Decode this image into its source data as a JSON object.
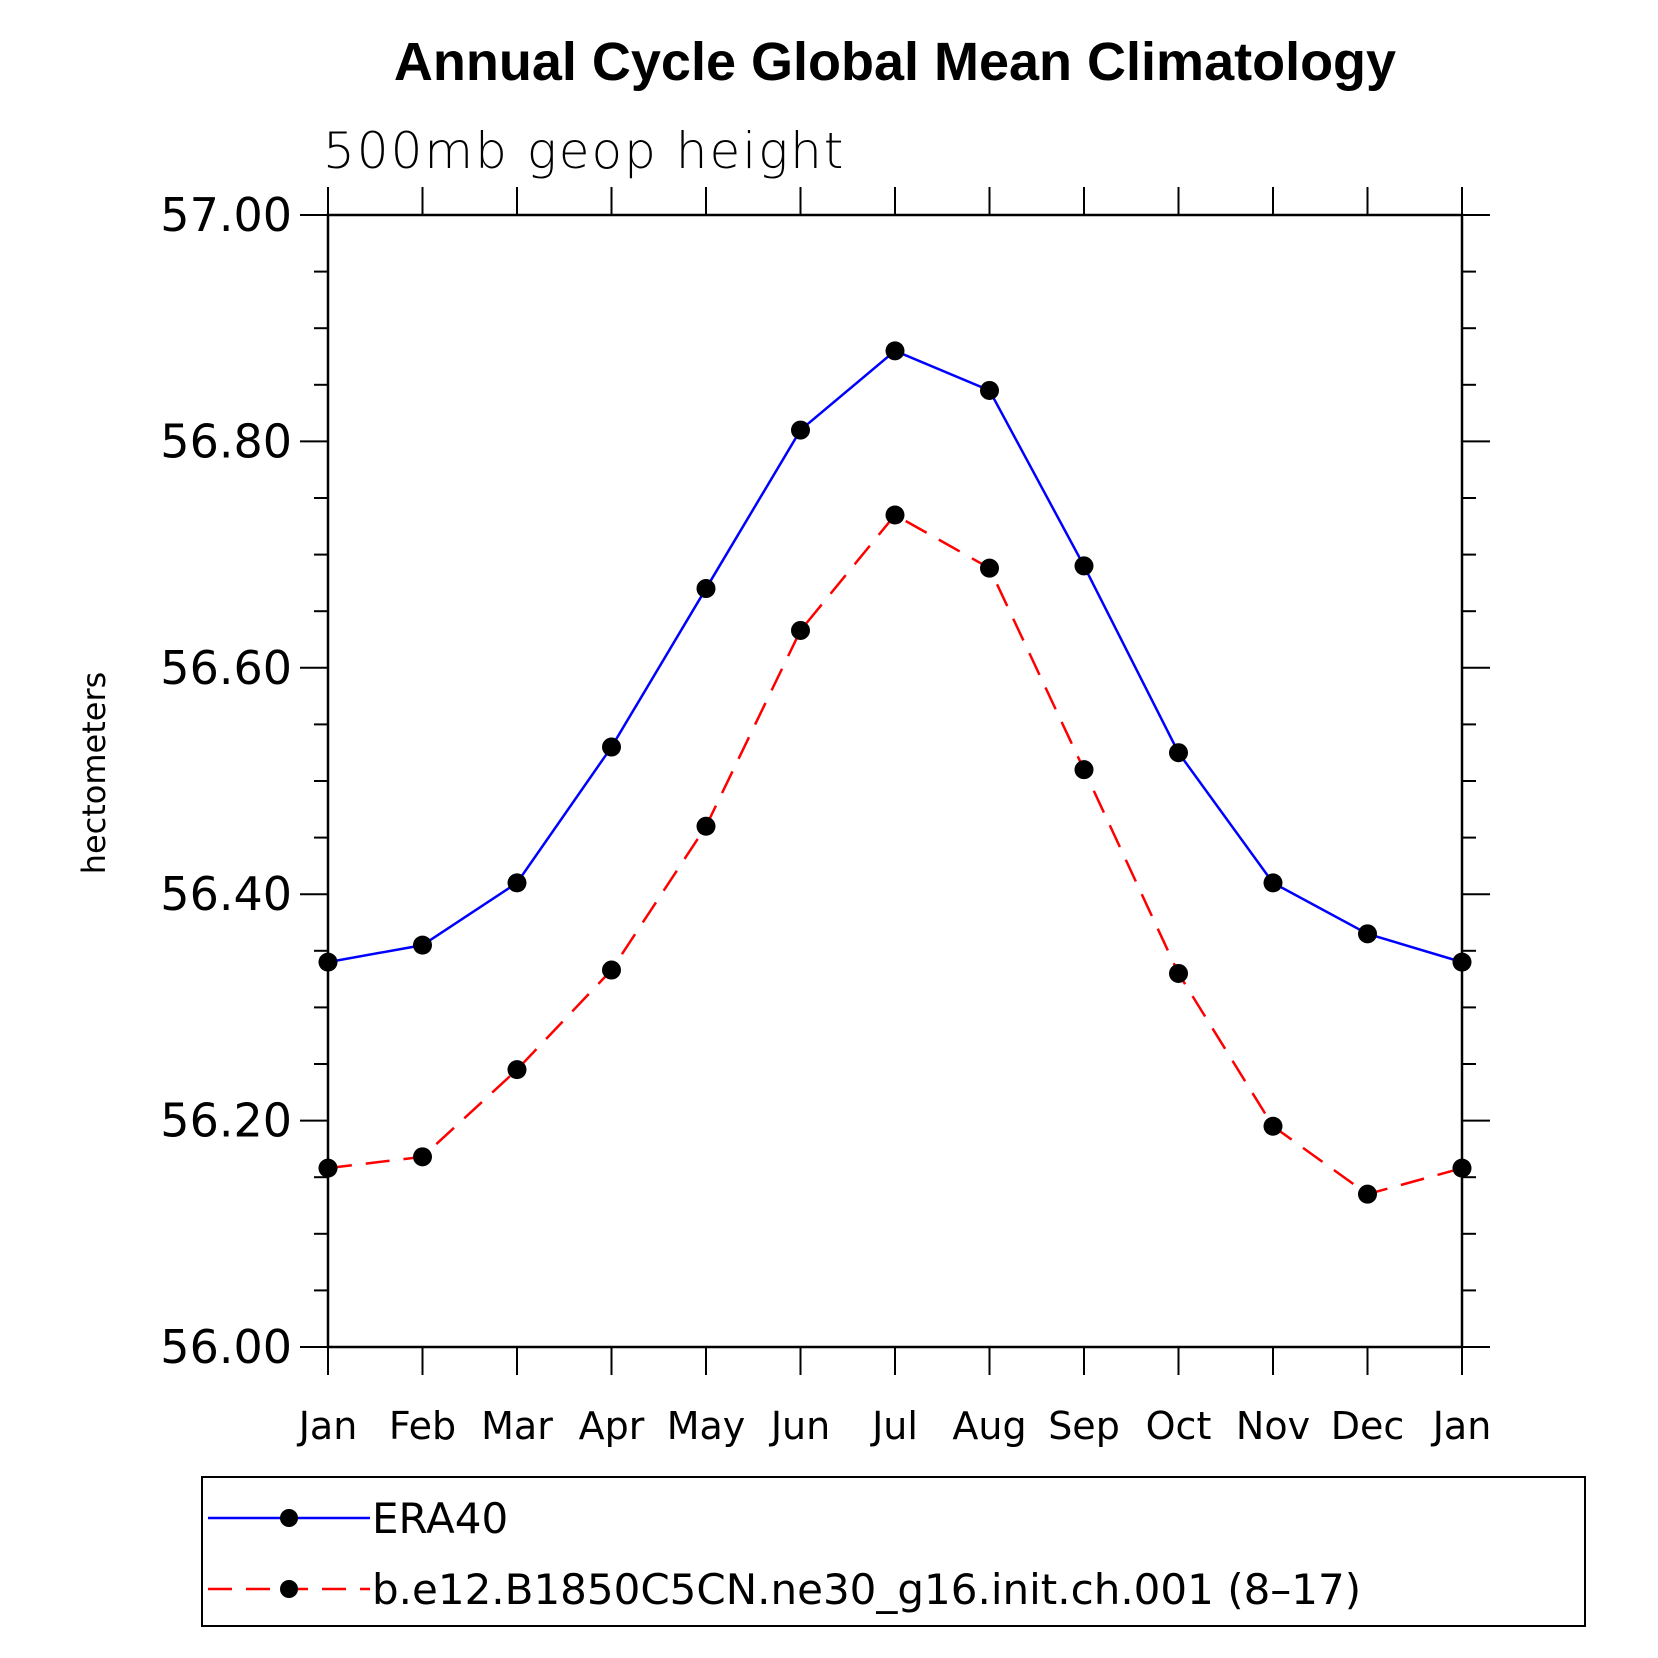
{
  "chart_data": {
    "type": "line",
    "title": "Annual Cycle Global Mean Climatology",
    "subtitle": "500mb geop height",
    "ylabel": "hectometers",
    "xlabel": "",
    "categories": [
      "Jan",
      "Feb",
      "Mar",
      "Apr",
      "May",
      "Jun",
      "Jul",
      "Aug",
      "Sep",
      "Oct",
      "Nov",
      "Dec",
      "Jan"
    ],
    "ylim": [
      56.0,
      57.0
    ],
    "yticks": [
      "56.00",
      "56.20",
      "56.40",
      "56.60",
      "56.80",
      "57.00"
    ],
    "yminor_step": 0.05,
    "grid": false,
    "legend_position": "bottom",
    "series": [
      {
        "name": "ERA40",
        "color": "#0000ff",
        "dash": "solid",
        "marker": "filled-circle",
        "values": [
          56.34,
          56.355,
          56.41,
          56.53,
          56.67,
          56.81,
          56.88,
          56.845,
          56.69,
          56.525,
          56.41,
          56.365,
          56.34
        ]
      },
      {
        "name": "b.e12.B1850C5CN.ne30_g16.init.ch.001 (8–17)",
        "color": "#ff0000",
        "dash": "dashed",
        "marker": "filled-circle",
        "values": [
          56.158,
          56.168,
          56.245,
          56.333,
          56.46,
          56.633,
          56.735,
          56.688,
          56.51,
          56.33,
          56.195,
          56.135,
          56.158
        ]
      }
    ]
  }
}
